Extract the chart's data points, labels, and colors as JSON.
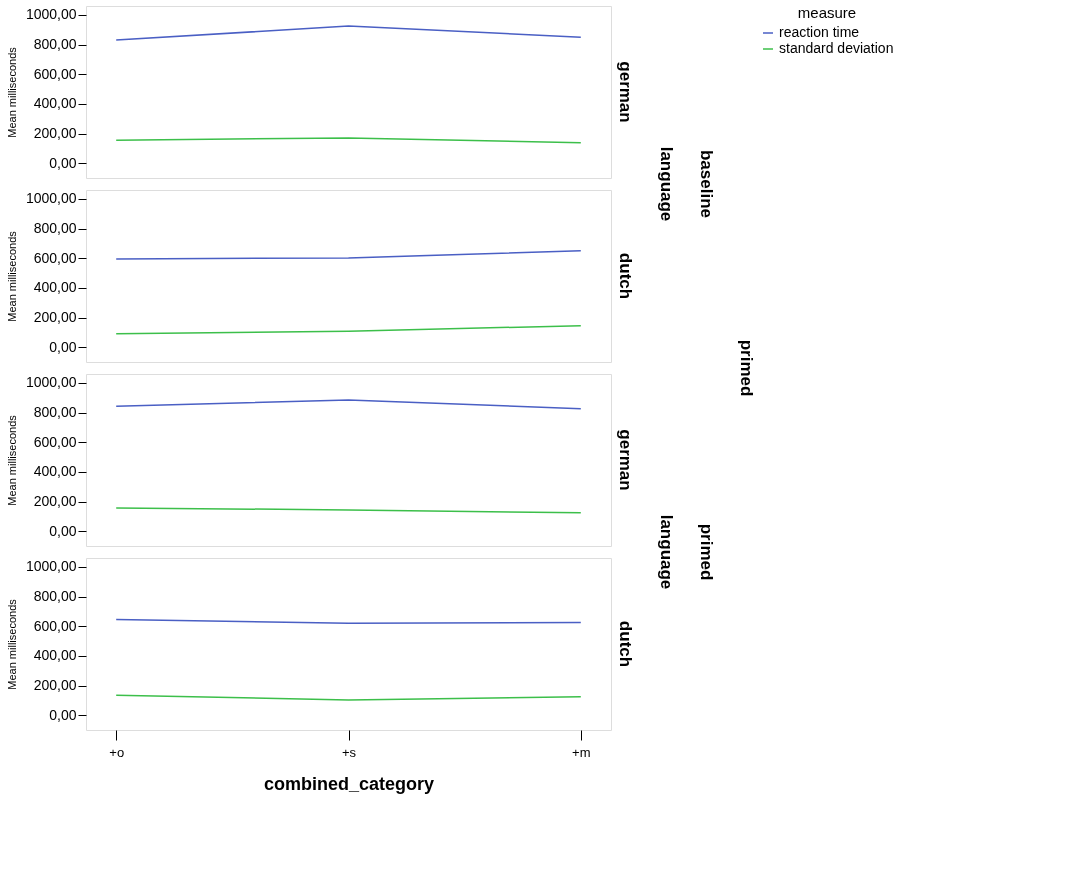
{
  "chart_data": [
    {
      "type": "line",
      "title": "german",
      "ylabel": "Mean milliseconds",
      "legend_title": "measure",
      "legend": "top right",
      "tick_labels": "y",
      "annotations": [
        "language",
        "baseline"
      ],
      "categories": [
        null,
        null,
        null
      ],
      "ylim": [
        -100,
        1060
      ],
      "yticks": [
        {
          "value": 0,
          "label": "0,00"
        },
        {
          "value": 200,
          "label": "200,00"
        },
        {
          "value": 400,
          "label": "400,00"
        },
        {
          "value": 600,
          "label": "600,00"
        },
        {
          "value": 800,
          "label": "800,00"
        },
        {
          "value": 1000,
          "label": "1000,00"
        }
      ],
      "series": [
        {
          "name": "reaction time",
          "color": "#4a5fc4",
          "values": [
            830,
            925,
            850
          ]
        },
        {
          "name": "standard deviation",
          "color": "#3cbf4a",
          "values": [
            155,
            170,
            138
          ]
        }
      ]
    },
    {
      "type": "line",
      "title": "dutch",
      "ylabel": "Mean milliseconds",
      "tick_labels": "y",
      "annotations": [
        "primed"
      ],
      "categories": [
        null,
        null,
        null
      ],
      "ylim": [
        -100,
        1060
      ],
      "yticks": [
        {
          "value": 0,
          "label": "0,00"
        },
        {
          "value": 200,
          "label": "200,00"
        },
        {
          "value": 400,
          "label": "400,00"
        },
        {
          "value": 600,
          "label": "600,00"
        },
        {
          "value": 800,
          "label": "800,00"
        },
        {
          "value": 1000,
          "label": "1000,00"
        }
      ],
      "series": [
        {
          "color": "#4a5fc4",
          "values": [
            595,
            602,
            650
          ]
        },
        {
          "color": "#3cbf4a",
          "values": [
            90,
            108,
            145
          ]
        }
      ]
    },
    {
      "type": "line",
      "title": "german",
      "ylabel": "Mean milliseconds",
      "tick_labels": "y",
      "annotations": [
        "language",
        "primed"
      ],
      "categories": [
        null,
        null,
        null
      ],
      "ylim": [
        -100,
        1060
      ],
      "yticks": [
        {
          "value": 0,
          "label": "0,00"
        },
        {
          "value": 200,
          "label": "200,00"
        },
        {
          "value": 400,
          "label": "400,00"
        },
        {
          "value": 600,
          "label": "600,00"
        },
        {
          "value": 800,
          "label": "800,00"
        },
        {
          "value": 1000,
          "label": "1000,00"
        }
      ],
      "series": [
        {
          "color": "#4a5fc4",
          "values": [
            842,
            885,
            826
          ]
        },
        {
          "color": "#3cbf4a",
          "values": [
            157,
            143,
            124
          ]
        }
      ]
    },
    {
      "type": "line",
      "title": "dutch",
      "ylabel": "Mean milliseconds",
      "xlabel": "combined_category",
      "categories": [
        "+o",
        "+s",
        "+m"
      ],
      "ylim": [
        -100,
        1060
      ],
      "yticks": [
        {
          "value": 0,
          "label": "0,00"
        },
        {
          "value": 200,
          "label": "200,00"
        },
        {
          "value": 400,
          "label": "400,00"
        },
        {
          "value": 600,
          "label": "600,00"
        },
        {
          "value": 800,
          "label": "800,00"
        },
        {
          "value": 1000,
          "label": "1000,00"
        }
      ],
      "series": [
        {
          "color": "#4a5fc4",
          "values": [
            645,
            620,
            625
          ]
        },
        {
          "color": "#3cbf4a",
          "values": [
            135,
            102,
            124
          ]
        }
      ]
    }
  ]
}
